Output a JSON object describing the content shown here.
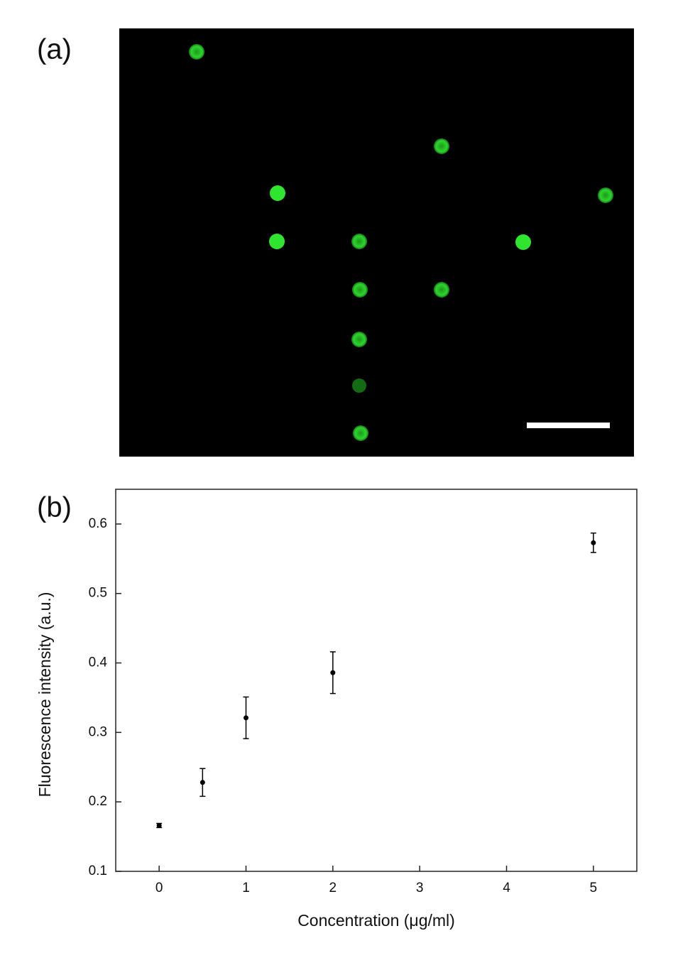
{
  "panel_labels": [
    "(a)",
    "(b)"
  ],
  "chart_data": {
    "type": "scatter",
    "x_label": "Concentration (μg/ml)",
    "y_label": "Fluorescence intensity (a.u.)",
    "x": [
      0,
      0.5,
      1,
      2,
      5
    ],
    "values": [
      0.166,
      0.228,
      0.321,
      0.386,
      0.573
    ],
    "errors": [
      0.003,
      0.02,
      0.03,
      0.03,
      0.014
    ],
    "color": "#000000",
    "xlim": [
      -0.5,
      5.5
    ],
    "xticks": [
      0,
      1,
      2,
      3,
      4,
      5
    ],
    "ylim": [
      0.1,
      0.65
    ],
    "yticks": [
      0.1,
      0.2,
      0.3,
      0.4,
      0.5,
      0.6
    ],
    "grid": false
  }
}
